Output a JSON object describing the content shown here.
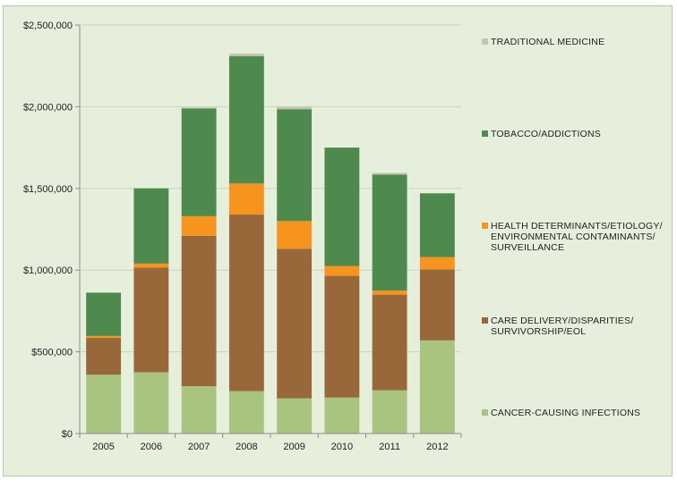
{
  "chart_data": {
    "type": "bar",
    "stacked": true,
    "categories": [
      "2005",
      "2006",
      "2007",
      "2008",
      "2009",
      "2010",
      "2011",
      "2012"
    ],
    "ylim": [
      0,
      2500000
    ],
    "yticks": [
      0,
      500000,
      1000000,
      1500000,
      2000000,
      2500000
    ],
    "ytick_labels": [
      "$0",
      "$500,000",
      "$1,000,000",
      "$1,500,000",
      "$2,000,000",
      "$2,500,000"
    ],
    "grid": true,
    "legend_position": "right",
    "series": [
      {
        "name": "CANCER-CAUSING INFECTIONS",
        "color": "#a9c47f",
        "values": [
          360000,
          375000,
          290000,
          260000,
          215000,
          220000,
          265000,
          570000
        ]
      },
      {
        "name": "CARE DELIVERY/DISPARITIES/ SURVIVORSHIP/EOL",
        "color": "#98683a",
        "values": [
          225000,
          640000,
          920000,
          1080000,
          915000,
          745000,
          585000,
          435000
        ]
      },
      {
        "name": "HEALTH DETERMINANTS/ETIOLOGY/ ENVIRONMENTAL CONTAMINANTS/ SURVEILLANCE",
        "color": "#f7941d",
        "values": [
          12000,
          25000,
          120000,
          190000,
          170000,
          60000,
          25000,
          75000
        ]
      },
      {
        "name": "TOBACCO/ADDICTIONS",
        "color": "#4e8a4e",
        "values": [
          265000,
          460000,
          660000,
          780000,
          685000,
          725000,
          710000,
          390000
        ]
      },
      {
        "name": "TRADITIONAL MEDICINE",
        "color": "#c9c2b0",
        "values": [
          0,
          0,
          5000,
          15000,
          15000,
          0,
          10000,
          0
        ]
      }
    ],
    "legend_order": [
      {
        "series": 4,
        "lines": [
          "TRADITIONAL MEDICINE"
        ]
      },
      {
        "series": 3,
        "lines": [
          "TOBACCO/ADDICTIONS"
        ]
      },
      {
        "series": 2,
        "lines": [
          "HEALTH DETERMINANTS/ETIOLOGY/",
          "ENVIRONMENTAL CONTAMINANTS/",
          "SURVEILLANCE"
        ]
      },
      {
        "series": 1,
        "lines": [
          "CARE DELIVERY/DISPARITIES/",
          "SURVIVORSHIP/EOL"
        ]
      },
      {
        "series": 0,
        "lines": [
          "CANCER-CAUSING INFECTIONS"
        ]
      }
    ]
  }
}
